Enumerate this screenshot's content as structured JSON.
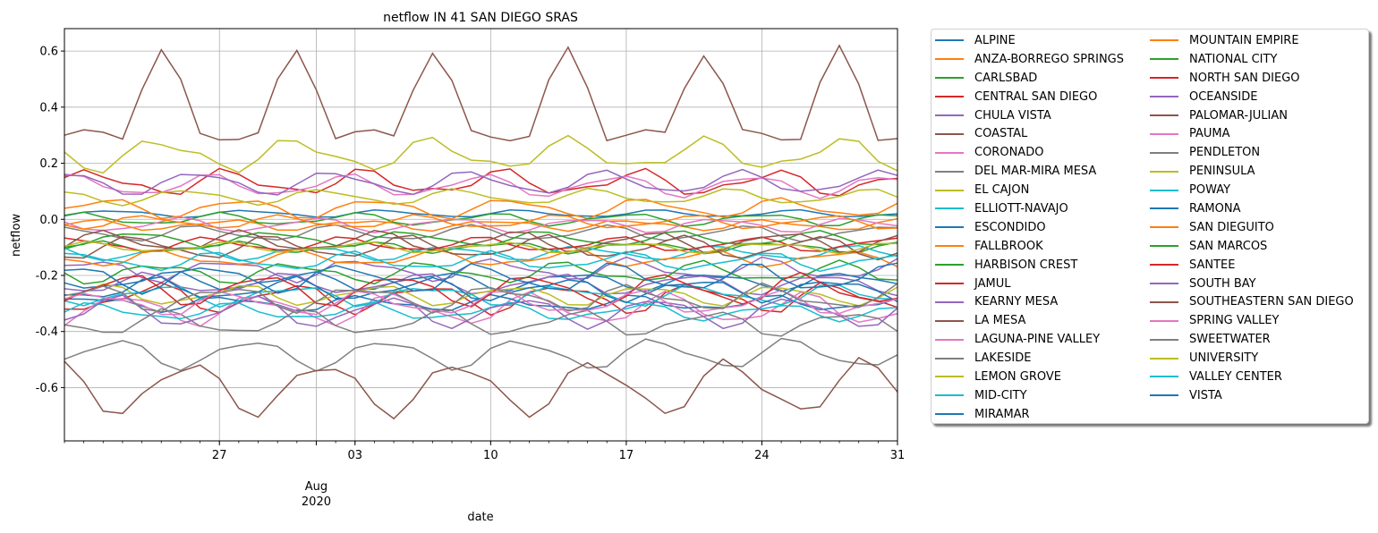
{
  "chart_data": {
    "type": "line",
    "title": "netflow IN 41 SAN DIEGO SRAS",
    "xlabel": "date",
    "ylabel": "netflow",
    "xlim": [
      "2020-07-19",
      "2020-08-31"
    ],
    "ylim": [
      -0.79,
      0.68
    ],
    "yticks": [
      "-0.6",
      "-0.4",
      "-0.2",
      "0.0",
      "0.2",
      "0.4",
      "0.6"
    ],
    "xticks": [
      {
        "date": "2020-07-27",
        "label": "27"
      },
      {
        "date": "2020-08-01",
        "label": "Aug",
        "sublabel": "2020"
      },
      {
        "date": "2020-08-03",
        "label": "03"
      },
      {
        "date": "2020-08-10",
        "label": "10"
      },
      {
        "date": "2020-08-17",
        "label": "17"
      },
      {
        "date": "2020-08-24",
        "label": "24"
      },
      {
        "date": "2020-08-31",
        "label": "31"
      }
    ],
    "grid": true,
    "legend_position": "outside-right",
    "series": [
      {
        "name": "ALPINE",
        "color": "#1f77b4",
        "base": 0.02,
        "amp": 0.01
      },
      {
        "name": "ANZA-BORREGO SPRINGS",
        "color": "#ff7f0e",
        "base": 0.04,
        "amp": 0.03
      },
      {
        "name": "CARLSBAD",
        "color": "#2ca02c",
        "base": -0.1,
        "amp": 0.02
      },
      {
        "name": "CENTRAL SAN DIEGO",
        "color": "#d62728",
        "base": 0.13,
        "amp": 0.05
      },
      {
        "name": "CHULA VISTA",
        "color": "#9467bd",
        "base": -0.18,
        "amp": 0.04
      },
      {
        "name": "COASTAL",
        "color": "#8c564b",
        "base": 0.35,
        "amp": 0.23
      },
      {
        "name": "CORONADO",
        "color": "#e377c2",
        "base": 0.12,
        "amp": 0.03
      },
      {
        "name": "DEL MAR-MIRA MESA",
        "color": "#7f7f7f",
        "base": -0.05,
        "amp": 0.02
      },
      {
        "name": "EL CAJON",
        "color": "#bcbd22",
        "base": 0.08,
        "amp": 0.02
      },
      {
        "name": "ELLIOTT-NAVAJO",
        "color": "#17becf",
        "base": -0.12,
        "amp": 0.02
      },
      {
        "name": "ESCONDIDO",
        "color": "#1f77b4",
        "base": -0.22,
        "amp": 0.03
      },
      {
        "name": "FALLBROOK",
        "color": "#ff7f0e",
        "base": -0.14,
        "amp": 0.03
      },
      {
        "name": "HARBISON CREST",
        "color": "#2ca02c",
        "base": -0.19,
        "amp": 0.04
      },
      {
        "name": "JAMUL",
        "color": "#d62728",
        "base": -0.28,
        "amp": 0.05
      },
      {
        "name": "KEARNY MESA",
        "color": "#9467bd",
        "base": -0.23,
        "amp": 0.03
      },
      {
        "name": "LA MESA",
        "color": "#8c564b",
        "base": -0.1,
        "amp": 0.03
      },
      {
        "name": "LAGUNA-PINE VALLEY",
        "color": "#e377c2",
        "base": -0.32,
        "amp": 0.04
      },
      {
        "name": "LAKESIDE",
        "color": "#7f7f7f",
        "base": -0.48,
        "amp": 0.04
      },
      {
        "name": "LEMON GROVE",
        "color": "#bcbd22",
        "base": -0.27,
        "amp": 0.03
      },
      {
        "name": "MID-CITY",
        "color": "#17becf",
        "base": -0.33,
        "amp": 0.03
      },
      {
        "name": "MIRAMAR",
        "color": "#1f77b4",
        "base": -0.3,
        "amp": 0.03
      },
      {
        "name": "MOUNTAIN EMPIRE",
        "color": "#ff7f0e",
        "base": -0.02,
        "amp": 0.02
      },
      {
        "name": "NATIONAL CITY",
        "color": "#2ca02c",
        "base": 0.0,
        "amp": 0.02
      },
      {
        "name": "NORTH SAN DIEGO",
        "color": "#d62728",
        "base": -0.09,
        "amp": 0.02
      },
      {
        "name": "OCEANSIDE",
        "color": "#9467bd",
        "base": 0.13,
        "amp": 0.03
      },
      {
        "name": "PALOMAR-JULIAN",
        "color": "#8c564b",
        "base": -0.6,
        "amp": 0.07
      },
      {
        "name": "PAUMA",
        "color": "#e377c2",
        "base": -0.02,
        "amp": 0.02
      },
      {
        "name": "PENDLETON",
        "color": "#7f7f7f",
        "base": -0.37,
        "amp": 0.04
      },
      {
        "name": "PENINSULA",
        "color": "#bcbd22",
        "base": 0.23,
        "amp": 0.06
      },
      {
        "name": "POWAY",
        "color": "#17becf",
        "base": -0.27,
        "amp": 0.04
      },
      {
        "name": "RAMONA",
        "color": "#1f77b4",
        "base": -0.25,
        "amp": 0.04
      },
      {
        "name": "SAN DIEGUITO",
        "color": "#ff7f0e",
        "base": -0.01,
        "amp": 0.02
      },
      {
        "name": "SAN MARCOS",
        "color": "#2ca02c",
        "base": -0.07,
        "amp": 0.02
      },
      {
        "name": "SANTEE",
        "color": "#d62728",
        "base": -0.25,
        "amp": 0.04
      },
      {
        "name": "SOUTH BAY",
        "color": "#9467bd",
        "base": -0.33,
        "amp": 0.04
      },
      {
        "name": "SOUTHEASTERN SAN DIEGO",
        "color": "#8c564b",
        "base": -0.08,
        "amp": 0.03
      },
      {
        "name": "SPRING VALLEY",
        "color": "#e377c2",
        "base": -0.3,
        "amp": 0.04
      },
      {
        "name": "SWEETWATER",
        "color": "#7f7f7f",
        "base": -0.28,
        "amp": 0.05
      },
      {
        "name": "UNIVERSITY",
        "color": "#bcbd22",
        "base": -0.1,
        "amp": 0.02
      },
      {
        "name": "VALLEY CENTER",
        "color": "#17becf",
        "base": -0.15,
        "amp": 0.03
      },
      {
        "name": "VISTA",
        "color": "#1f77b4",
        "base": -0.21,
        "amp": 0.04
      }
    ]
  }
}
